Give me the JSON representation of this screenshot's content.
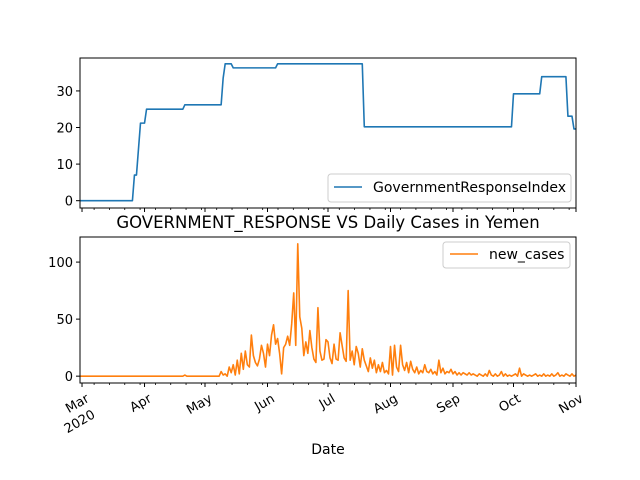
{
  "chart_data": [
    {
      "type": "line",
      "title": "",
      "xlabel": "",
      "ylabel": "",
      "xlim": [
        0,
        246
      ],
      "ylim": [
        -2,
        39
      ],
      "yticks": [
        0,
        10,
        20,
        30
      ],
      "ytick_labels": [
        "0",
        "10",
        "20",
        "30"
      ],
      "legend_position": "lower-right",
      "series": [
        {
          "name": "GovernmentResponseIndex",
          "color": "#1f77b4",
          "points": [
            [
              0,
              0
            ],
            [
              26,
              0
            ],
            [
              27,
              7
            ],
            [
              28,
              7
            ],
            [
              30,
              21.2
            ],
            [
              32,
              21.2
            ],
            [
              33,
              25
            ],
            [
              51,
              25
            ],
            [
              52,
              26.2
            ],
            [
              70,
              26.2
            ],
            [
              71,
              33.5
            ],
            [
              72,
              37.4
            ],
            [
              75,
              37.4
            ],
            [
              76,
              36.3
            ],
            [
              97,
              36.3
            ],
            [
              98,
              37.4
            ],
            [
              140,
              37.4
            ],
            [
              141,
              20.2
            ],
            [
              214,
              20.2
            ],
            [
              215,
              29.2
            ],
            [
              228,
              29.2
            ],
            [
              229,
              33.9
            ],
            [
              241,
              33.9
            ],
            [
              242,
              23.1
            ],
            [
              244,
              23.1
            ],
            [
              245,
              19.6
            ],
            [
              246,
              19.6
            ]
          ]
        }
      ]
    },
    {
      "type": "line",
      "title": "GOVERNMENT_RESPONSE VS Daily Cases in Yemen",
      "xlabel": "Date",
      "ylabel": "",
      "xlim": [
        0,
        246
      ],
      "ylim": [
        -6,
        122
      ],
      "yticks": [
        0,
        50,
        100
      ],
      "ytick_labels": [
        "0",
        "50",
        "100"
      ],
      "x_ticks": [
        {
          "day": 1,
          "label": "Mar",
          "sublabel": "2020"
        },
        {
          "day": 32,
          "label": "Apr",
          "sublabel": ""
        },
        {
          "day": 62,
          "label": "May",
          "sublabel": ""
        },
        {
          "day": 93,
          "label": "Jun",
          "sublabel": ""
        },
        {
          "day": 123,
          "label": "Jul",
          "sublabel": ""
        },
        {
          "day": 154,
          "label": "Aug",
          "sublabel": ""
        },
        {
          "day": 185,
          "label": "Sep",
          "sublabel": ""
        },
        {
          "day": 215,
          "label": "Oct",
          "sublabel": ""
        },
        {
          "day": 246,
          "label": "Nov",
          "sublabel": ""
        }
      ],
      "legend_position": "top-right",
      "series": [
        {
          "name": "new_cases",
          "color": "#ff7f0e",
          "points": [
            [
              0,
              0
            ],
            [
              51,
              0
            ],
            [
              52,
              1
            ],
            [
              53,
              0
            ],
            [
              69,
              0
            ],
            [
              70,
              4
            ],
            [
              71,
              1
            ],
            [
              72,
              2
            ],
            [
              73,
              0
            ],
            [
              74,
              8
            ],
            [
              75,
              3
            ],
            [
              76,
              10
            ],
            [
              77,
              1
            ],
            [
              78,
              14
            ],
            [
              79,
              2
            ],
            [
              80,
              20
            ],
            [
              81,
              6
            ],
            [
              82,
              22
            ],
            [
              83,
              10
            ],
            [
              84,
              8
            ],
            [
              85,
              36
            ],
            [
              86,
              18
            ],
            [
              87,
              12
            ],
            [
              88,
              9
            ],
            [
              89,
              15
            ],
            [
              90,
              27
            ],
            [
              91,
              20
            ],
            [
              92,
              8
            ],
            [
              93,
              28
            ],
            [
              94,
              18
            ],
            [
              95,
              36
            ],
            [
              96,
              45
            ],
            [
              97,
              28
            ],
            [
              98,
              33
            ],
            [
              99,
              20
            ],
            [
              100,
              2
            ],
            [
              101,
              25
            ],
            [
              102,
              28
            ],
            [
              103,
              35
            ],
            [
              104,
              27
            ],
            [
              105,
              46
            ],
            [
              106,
              73
            ],
            [
              107,
              27
            ],
            [
              108,
              116
            ],
            [
              109,
              52
            ],
            [
              110,
              42
            ],
            [
              111,
              18
            ],
            [
              112,
              30
            ],
            [
              113,
              20
            ],
            [
              114,
              40
            ],
            [
              115,
              25
            ],
            [
              116,
              15
            ],
            [
              117,
              12
            ],
            [
              118,
              60
            ],
            [
              119,
              22
            ],
            [
              120,
              14
            ],
            [
              121,
              15
            ],
            [
              122,
              32
            ],
            [
              123,
              30
            ],
            [
              124,
              16
            ],
            [
              125,
              11
            ],
            [
              126,
              28
            ],
            [
              127,
              15
            ],
            [
              128,
              14
            ],
            [
              129,
              38
            ],
            [
              130,
              27
            ],
            [
              131,
              16
            ],
            [
              132,
              13
            ],
            [
              133,
              75
            ],
            [
              134,
              14
            ],
            [
              135,
              22
            ],
            [
              136,
              10
            ],
            [
              137,
              26
            ],
            [
              138,
              20
            ],
            [
              139,
              8
            ],
            [
              140,
              24
            ],
            [
              141,
              14
            ],
            [
              142,
              9
            ],
            [
              143,
              4
            ],
            [
              144,
              16
            ],
            [
              145,
              7
            ],
            [
              146,
              14
            ],
            [
              147,
              3
            ],
            [
              148,
              10
            ],
            [
              149,
              4
            ],
            [
              150,
              12
            ],
            [
              151,
              3
            ],
            [
              152,
              5
            ],
            [
              153,
              2
            ],
            [
              154,
              26
            ],
            [
              155,
              1
            ],
            [
              156,
              27
            ],
            [
              157,
              8
            ],
            [
              158,
              4
            ],
            [
              159,
              27
            ],
            [
              160,
              10
            ],
            [
              161,
              5
            ],
            [
              162,
              12
            ],
            [
              163,
              3
            ],
            [
              164,
              13
            ],
            [
              165,
              6
            ],
            [
              166,
              3
            ],
            [
              167,
              8
            ],
            [
              168,
              2
            ],
            [
              169,
              5
            ],
            [
              170,
              3
            ],
            [
              171,
              10
            ],
            [
              172,
              4
            ],
            [
              173,
              3
            ],
            [
              174,
              6
            ],
            [
              175,
              2
            ],
            [
              176,
              4
            ],
            [
              177,
              1
            ],
            [
              178,
              14
            ],
            [
              179,
              3
            ],
            [
              180,
              7
            ],
            [
              181,
              2
            ],
            [
              182,
              4
            ],
            [
              183,
              3
            ],
            [
              184,
              6
            ],
            [
              185,
              2
            ],
            [
              186,
              4
            ],
            [
              187,
              1
            ],
            [
              188,
              3
            ],
            [
              189,
              1
            ],
            [
              190,
              3
            ],
            [
              191,
              2
            ],
            [
              192,
              1
            ],
            [
              193,
              3
            ],
            [
              194,
              1
            ],
            [
              195,
              2
            ],
            [
              196,
              1
            ],
            [
              197,
              0
            ],
            [
              198,
              2
            ],
            [
              199,
              1
            ],
            [
              200,
              0
            ],
            [
              201,
              2
            ],
            [
              202,
              0
            ],
            [
              203,
              5
            ],
            [
              204,
              1
            ],
            [
              205,
              0
            ],
            [
              206,
              2
            ],
            [
              207,
              0
            ],
            [
              208,
              1
            ],
            [
              209,
              4
            ],
            [
              210,
              0
            ],
            [
              211,
              2
            ],
            [
              212,
              0
            ],
            [
              213,
              1
            ],
            [
              214,
              0
            ],
            [
              215,
              1
            ],
            [
              216,
              2
            ],
            [
              217,
              0
            ],
            [
              218,
              7
            ],
            [
              219,
              0
            ],
            [
              220,
              2
            ],
            [
              221,
              1
            ],
            [
              222,
              0
            ],
            [
              223,
              1
            ],
            [
              224,
              0
            ],
            [
              225,
              1
            ],
            [
              226,
              2
            ],
            [
              227,
              0
            ],
            [
              228,
              1
            ],
            [
              229,
              0
            ],
            [
              230,
              2
            ],
            [
              231,
              0
            ],
            [
              232,
              1
            ],
            [
              233,
              0
            ],
            [
              234,
              2
            ],
            [
              235,
              0
            ],
            [
              236,
              1
            ],
            [
              237,
              3
            ],
            [
              238,
              0
            ],
            [
              239,
              1
            ],
            [
              240,
              0
            ],
            [
              241,
              2
            ],
            [
              242,
              1
            ],
            [
              243,
              0
            ],
            [
              244,
              2
            ],
            [
              245,
              0
            ],
            [
              246,
              1
            ]
          ]
        }
      ]
    }
  ]
}
